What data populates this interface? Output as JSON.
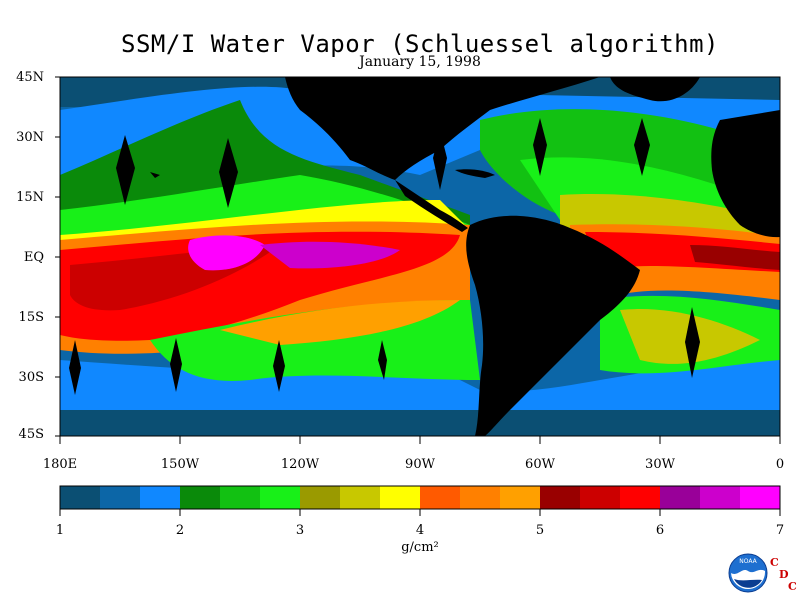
{
  "header": {
    "title": "SSM/I Water Vapor (Schluessel algorithm)",
    "date": "January 15, 1998"
  },
  "axes": {
    "lat_labels": [
      "45N",
      "30N",
      "15N",
      "EQ",
      "15S",
      "30S",
      "45S"
    ],
    "lon_labels": [
      "180E",
      "150W",
      "120W",
      "90W",
      "60W",
      "30W",
      "0"
    ]
  },
  "colorbar": {
    "ticks": [
      "1",
      "2",
      "3",
      "4",
      "5",
      "6",
      "7"
    ],
    "unit": "g/cm²",
    "range": [
      1,
      7
    ],
    "colors": [
      "#0b4f73",
      "#0c66a7",
      "#1088ff",
      "#0a8a0a",
      "#12c112",
      "#18f018",
      "#9a9a00",
      "#c8c800",
      "#ffff00",
      "#ff5a00",
      "#ff8000",
      "#ffa000",
      "#990000",
      "#cc0000",
      "#ff0000",
      "#990099",
      "#cc00cc",
      "#ff00ff"
    ]
  },
  "logo": {
    "name": "noaa-logo",
    "text": "NOAA",
    "cdc_letters": [
      "C",
      "D",
      "C"
    ]
  },
  "palette": {
    "land": "#000000",
    "ocean_dry": "#0b4f73",
    "ocean_mid": "#1088ff",
    "moist": "#18f018",
    "wet": "#ff0000",
    "very_wet": "#ff00ff"
  }
}
